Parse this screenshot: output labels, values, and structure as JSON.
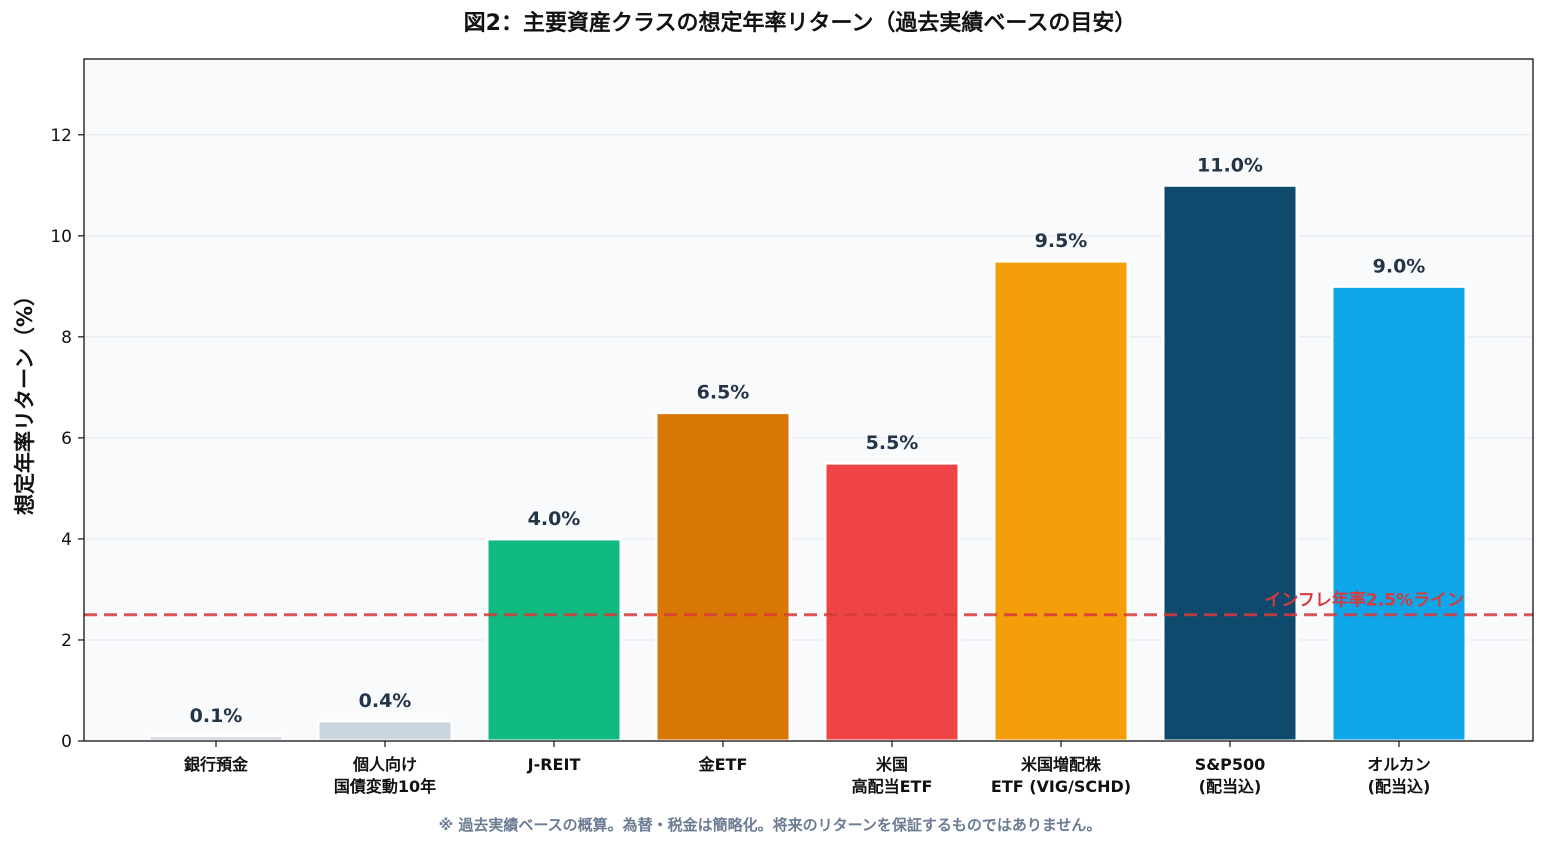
{
  "chart_data": {
    "type": "bar",
    "title": "図2：主要資産クラスの想定年率リターン（過去実績ベースの目安）",
    "ylabel": "想定年率リターン（%）",
    "xlabel": "",
    "ylim": [
      0,
      13.5
    ],
    "yticks": [
      0,
      2,
      4,
      6,
      8,
      10,
      12
    ],
    "grid": true,
    "categories": [
      [
        "銀行預金"
      ],
      [
        "個人向け",
        "国債変動10年"
      ],
      [
        "J-REIT"
      ],
      [
        "金ETF"
      ],
      [
        "米国",
        "高配当ETF"
      ],
      [
        "米国増配株",
        "ETF (VIG/SCHD)"
      ],
      [
        "S&P500",
        "(配当込)"
      ],
      [
        "オルカン",
        "(配当込)"
      ]
    ],
    "values": [
      0.1,
      0.4,
      4.0,
      6.5,
      5.5,
      9.5,
      11.0,
      9.0
    ],
    "value_labels": [
      "0.1%",
      "0.4%",
      "4.0%",
      "6.5%",
      "5.5%",
      "9.5%",
      "11.0%",
      "9.0%"
    ],
    "colors": [
      "#cbd5e1",
      "#cbd5e1",
      "#10b981",
      "#d97706",
      "#ef4444",
      "#f59e0b",
      "#0e4a6e",
      "#0ea5e9"
    ],
    "reference_line": {
      "value": 2.5,
      "label": "インフレ年率2.5%ライン",
      "color": "#d63a3a"
    },
    "footnote": "※ 過去実績ベースの概算。為替・税金は簡略化。将来のリターンを保証するものではありません。",
    "background": "#f8fafc",
    "grid_color": "#e2e8f0"
  }
}
